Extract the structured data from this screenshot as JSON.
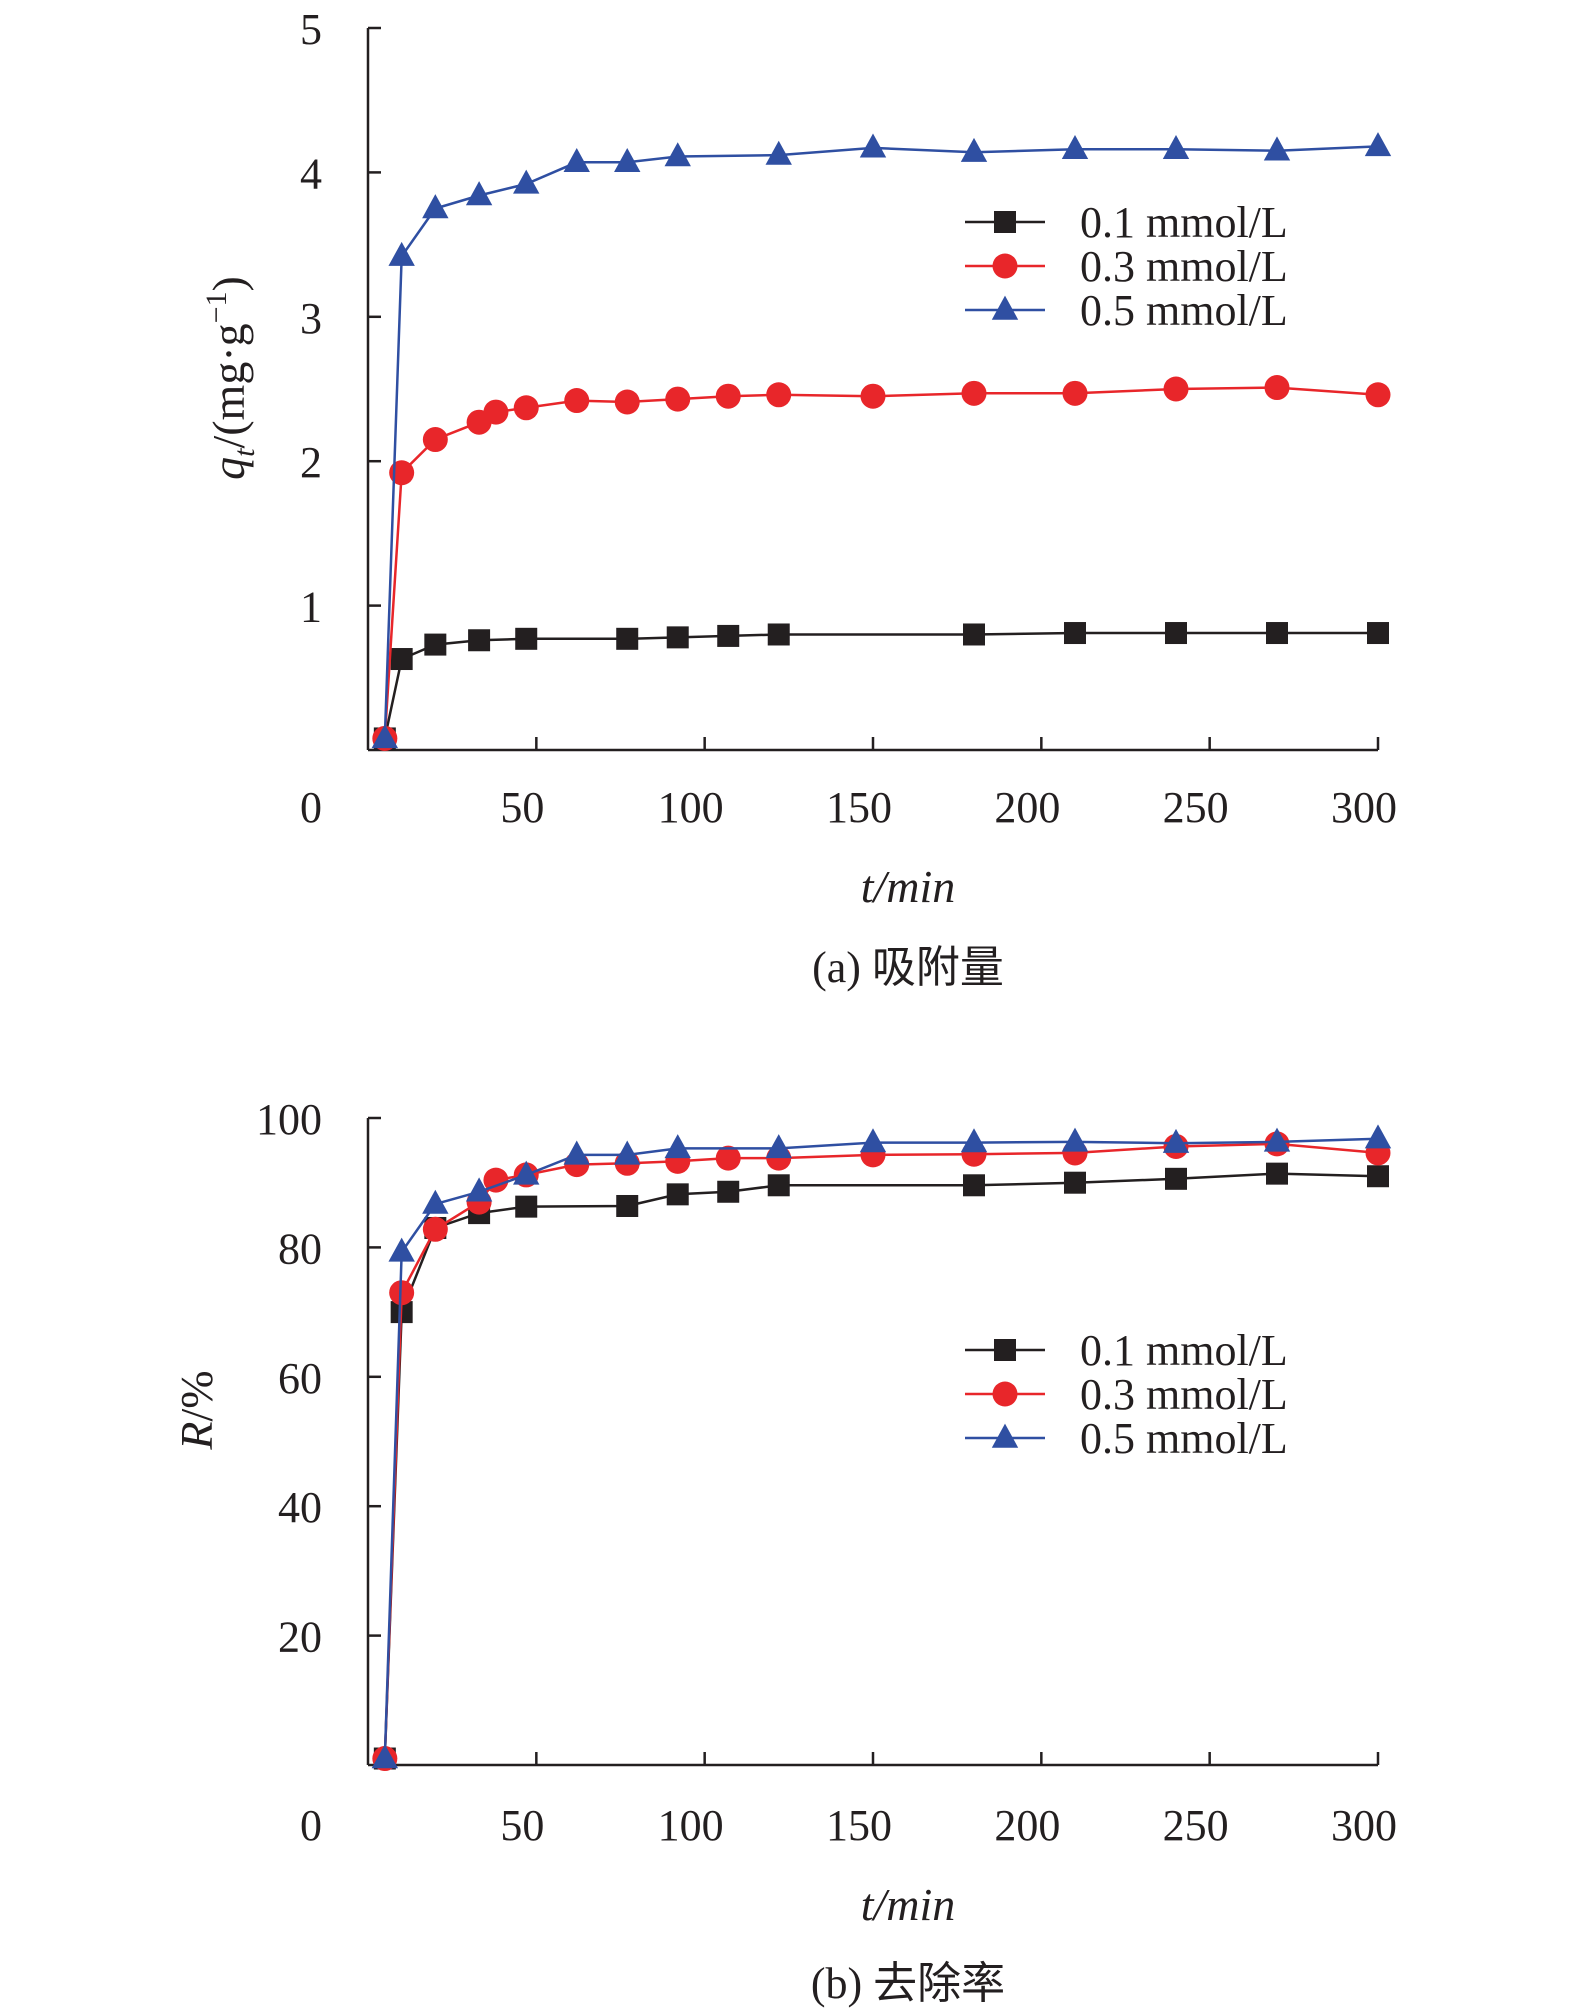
{
  "figure": {
    "panel_a": {
      "caption": "(a) 吸附量"
    },
    "panel_b": {
      "caption": "(b) 去除率"
    }
  },
  "colors": {
    "axis": "#231f20",
    "series_0_1": "#231f20",
    "series_0_3": "#e8262a",
    "series_0_5": "#2f4fa2"
  },
  "chart_data": [
    {
      "type": "line",
      "title": "(a) 吸附量",
      "xlabel": "t/min",
      "ylabel_parts": {
        "var": "q",
        "sub": "t",
        "unit_pre": "/(mg·g",
        "sup": "−1",
        "unit_post": ")"
      },
      "xlim": [
        0,
        300
      ],
      "ylim": [
        0,
        5
      ],
      "x_ticks": [
        0,
        50,
        100,
        150,
        200,
        250,
        300
      ],
      "y_ticks": [
        0,
        1,
        2,
        3,
        4,
        5
      ],
      "x_tick_labels": [
        "0",
        "50",
        "100",
        "150",
        "200",
        "250",
        "300"
      ],
      "y_tick_labels": [
        "0",
        "1",
        "2",
        "3",
        "4",
        "5"
      ],
      "legend_position": "top-right",
      "series": [
        {
          "name": "0.1 mmol/L",
          "marker": "square",
          "color": "#231f20",
          "x": [
            5,
            10,
            20,
            33,
            47,
            77,
            92,
            107,
            122,
            180,
            210,
            240,
            270,
            300
          ],
          "y": [
            0.08,
            0.63,
            0.73,
            0.76,
            0.77,
            0.77,
            0.78,
            0.79,
            0.8,
            0.8,
            0.81,
            0.81,
            0.81,
            0.81
          ]
        },
        {
          "name": "0.3 mmol/L",
          "marker": "circle",
          "color": "#e8262a",
          "x": [
            5,
            10,
            20,
            33,
            38,
            47,
            62,
            77,
            92,
            107,
            122,
            150,
            180,
            210,
            240,
            270,
            300
          ],
          "y": [
            0.08,
            1.92,
            2.15,
            2.27,
            2.34,
            2.37,
            2.42,
            2.41,
            2.43,
            2.45,
            2.46,
            2.45,
            2.47,
            2.47,
            2.5,
            2.51,
            2.46
          ]
        },
        {
          "name": "0.5 mmol/L",
          "marker": "triangle",
          "color": "#2f4fa2",
          "x": [
            5,
            10,
            20,
            33,
            47,
            62,
            77,
            92,
            122,
            150,
            180,
            210,
            240,
            270,
            300
          ],
          "y": [
            0.08,
            3.42,
            3.75,
            3.84,
            3.92,
            4.07,
            4.07,
            4.11,
            4.12,
            4.17,
            4.14,
            4.16,
            4.16,
            4.15,
            4.18
          ]
        }
      ]
    },
    {
      "type": "line",
      "title": "(b) 去除率",
      "xlabel": "t/min",
      "ylabel_parts": {
        "var": "R",
        "unit": "/%"
      },
      "xlim": [
        0,
        300
      ],
      "ylim": [
        0,
        100
      ],
      "x_ticks": [
        0,
        50,
        100,
        150,
        200,
        250,
        300
      ],
      "y_ticks": [
        0,
        20,
        40,
        60,
        80,
        100
      ],
      "x_tick_labels": [
        "0",
        "50",
        "100",
        "150",
        "200",
        "250",
        "300"
      ],
      "y_tick_labels": [
        "0",
        "20",
        "40",
        "60",
        "80",
        "100"
      ],
      "legend_position": "right",
      "series": [
        {
          "name": "0.1 mmol/L",
          "marker": "square",
          "color": "#231f20",
          "x": [
            5,
            10,
            20,
            33,
            47,
            77,
            92,
            107,
            122,
            180,
            210,
            240,
            270,
            300
          ],
          "y": [
            1.0,
            70.0,
            83.0,
            85.3,
            86.3,
            86.4,
            88.2,
            88.6,
            89.6,
            89.6,
            90.0,
            90.6,
            91.4,
            91.0
          ]
        },
        {
          "name": "0.3 mmol/L",
          "marker": "circle",
          "color": "#e8262a",
          "x": [
            5,
            10,
            20,
            33,
            38,
            47,
            62,
            77,
            92,
            107,
            122,
            150,
            180,
            210,
            240,
            270,
            300
          ],
          "y": [
            1.0,
            73.0,
            82.8,
            87.0,
            90.4,
            91.2,
            92.8,
            93.0,
            93.3,
            93.8,
            93.8,
            94.3,
            94.4,
            94.6,
            95.6,
            96.0,
            94.6
          ]
        },
        {
          "name": "0.5 mmol/L",
          "marker": "triangle",
          "color": "#2f4fa2",
          "x": [
            5,
            10,
            20,
            33,
            47,
            62,
            77,
            92,
            122,
            150,
            180,
            210,
            240,
            270,
            300
          ],
          "y": [
            1.0,
            79.3,
            86.7,
            88.6,
            91.2,
            94.3,
            94.3,
            95.3,
            95.3,
            96.2,
            96.2,
            96.3,
            96.1,
            96.3,
            96.8
          ]
        }
      ]
    }
  ]
}
